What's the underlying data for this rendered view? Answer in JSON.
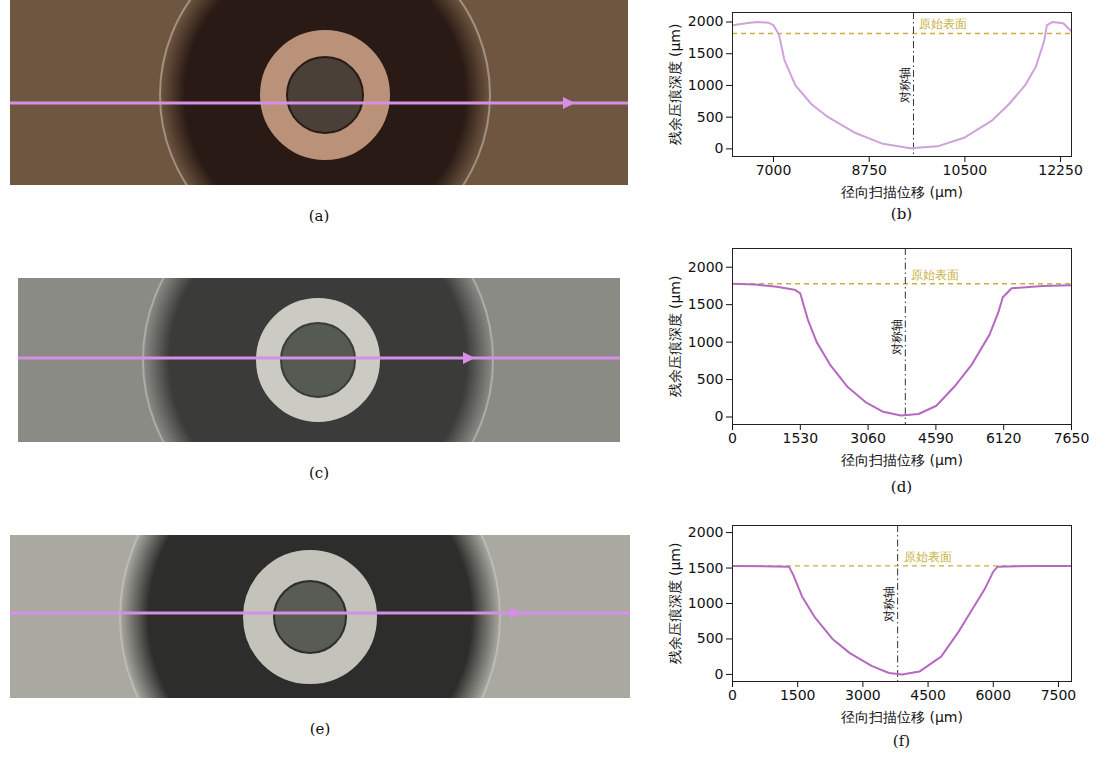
{
  "images": [
    {
      "label": "(a)"
    },
    {
      "label": "(c)"
    },
    {
      "label": "(e)"
    }
  ],
  "chart_data": [
    {
      "type": "line",
      "panel": "(b)",
      "x_label": "径向扫描位移 (μm)",
      "y_label": "残余压痕深度 (μm)",
      "x": [
        6250,
        6500,
        6700,
        6900,
        7000,
        7100,
        7200,
        7400,
        7700,
        8000,
        8500,
        9000,
        9500,
        10000,
        10500,
        11000,
        11300,
        11600,
        11800,
        11950,
        12000,
        12100,
        12300,
        12450
      ],
      "series": [
        {
          "color": "#cfa3d9",
          "values": [
            1950,
            1980,
            2000,
            1990,
            1950,
            1800,
            1400,
            1000,
            700,
            500,
            250,
            80,
            10,
            40,
            180,
            450,
            700,
            1000,
            1300,
            1700,
            1950,
            2000,
            1980,
            1850
          ]
        }
      ],
      "xlim": [
        6250,
        12450
      ],
      "xticks": [
        7000,
        8750,
        10500,
        12250
      ],
      "ylim": [
        -120,
        2150
      ],
      "yticks": [
        0,
        500,
        1000,
        1500,
        2000
      ],
      "grid": false,
      "annotations": [
        {
          "text": "原始表面",
          "y": 1820,
          "line_style": "dashed",
          "color": "#c8b040"
        },
        {
          "text": "对称轴",
          "x": 9560,
          "line_style": "dashdot",
          "color": "#333333"
        }
      ]
    },
    {
      "type": "line",
      "panel": "(d)",
      "x_label": "径向扫描位移 (μm)",
      "y_label": "残余压痕深度 (μm)",
      "x": [
        0,
        500,
        1000,
        1400,
        1530,
        1700,
        1900,
        2200,
        2600,
        3000,
        3400,
        3800,
        4200,
        4600,
        5000,
        5400,
        5800,
        6000,
        6100,
        6300,
        7000,
        7650
      ],
      "series": [
        {
          "color": "#b56abf",
          "values": [
            1780,
            1770,
            1740,
            1700,
            1650,
            1300,
            1000,
            700,
            400,
            200,
            70,
            20,
            40,
            150,
            400,
            700,
            1100,
            1400,
            1600,
            1720,
            1750,
            1760
          ]
        }
      ],
      "xlim": [
        0,
        7650
      ],
      "xticks": [
        0,
        1530,
        3060,
        4590,
        6120,
        7650
      ],
      "ylim": [
        -100,
        2250
      ],
      "yticks": [
        0,
        500,
        1000,
        1500,
        2000
      ],
      "grid": false,
      "annotations": [
        {
          "text": "原始表面",
          "y": 1780,
          "line_style": "dashed",
          "color": "#c8b040"
        },
        {
          "text": "对称轴",
          "x": 3900,
          "line_style": "dashdot",
          "color": "#333333"
        }
      ]
    },
    {
      "type": "line",
      "panel": "(f)",
      "x_label": "径向扫描位移 (μm)",
      "y_label": "残余压痕深度 (μm)",
      "x": [
        0,
        1300,
        1400,
        1600,
        1900,
        2300,
        2700,
        3200,
        3600,
        3900,
        4300,
        4800,
        5200,
        5500,
        5800,
        6000,
        6100,
        7000,
        7800
      ],
      "series": [
        {
          "color": "#b56abf",
          "values": [
            1530,
            1520,
            1400,
            1100,
            800,
            500,
            300,
            120,
            20,
            0,
            40,
            250,
            600,
            900,
            1200,
            1450,
            1520,
            1530,
            1530
          ]
        }
      ],
      "xlim": [
        0,
        7800
      ],
      "xticks": [
        0,
        1500,
        3000,
        4500,
        6000,
        7500
      ],
      "ylim": [
        -100,
        2100
      ],
      "yticks": [
        0,
        500,
        1000,
        1500,
        2000
      ],
      "grid": false,
      "annotations": [
        {
          "text": "原始表面",
          "y": 1530,
          "line_style": "dashed",
          "color": "#c8b040"
        },
        {
          "text": "对称轴",
          "x": 3800,
          "line_style": "dashdot",
          "color": "#333333"
        }
      ]
    }
  ]
}
